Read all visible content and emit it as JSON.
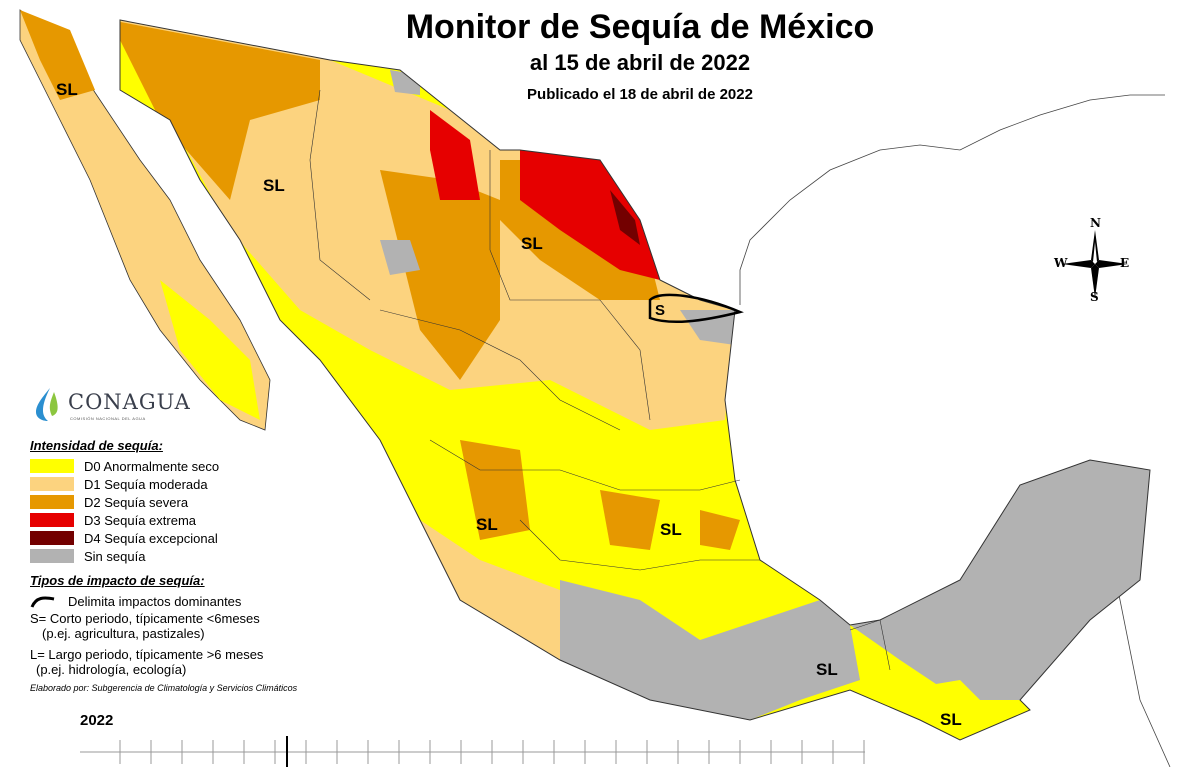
{
  "title": "Monitor de Sequía de México",
  "subtitle": "al 15 de abril de 2022",
  "published": "Publicado el 18 de abril de 2022",
  "map_labels": [
    "SL",
    "SL",
    "SL",
    "SL",
    "SL",
    "SL",
    "SL",
    "S"
  ],
  "compass": {
    "n": "N",
    "s": "S",
    "e": "E",
    "w": "W"
  },
  "logo": {
    "name": "CONAGUA",
    "sub": "COMISIÓN NACIONAL DEL AGUA"
  },
  "legend": {
    "heading": "Intensidad de sequía:",
    "items": [
      {
        "label": "D0 Anormalmente seco",
        "color": "#ffff00"
      },
      {
        "label": "D1 Sequía moderada",
        "color": "#fcd37f"
      },
      {
        "label": "D2 Sequía severa",
        "color": "#e69800"
      },
      {
        "label": "D3 Sequía extrema",
        "color": "#e60000"
      },
      {
        "label": "D4 Sequía excepcional",
        "color": "#730000"
      },
      {
        "label": "Sin sequía",
        "color": "#b2b2b2"
      }
    ]
  },
  "impacts": {
    "heading": "Tipos de impacto de sequía:",
    "line": "Delimita impactos dominantes",
    "s_def": "S= Corto periodo, típicamente <6meses",
    "s_ex": "(p.ej. agricultura, pastizales)",
    "l_def": "L= Largo periodo, típicamente >6 meses",
    "l_ex": "(p.ej. hidrología, ecología)"
  },
  "credit": "Elaborado por: Subgerencia de Climatología y Servicios Climáticos",
  "year": "2022"
}
